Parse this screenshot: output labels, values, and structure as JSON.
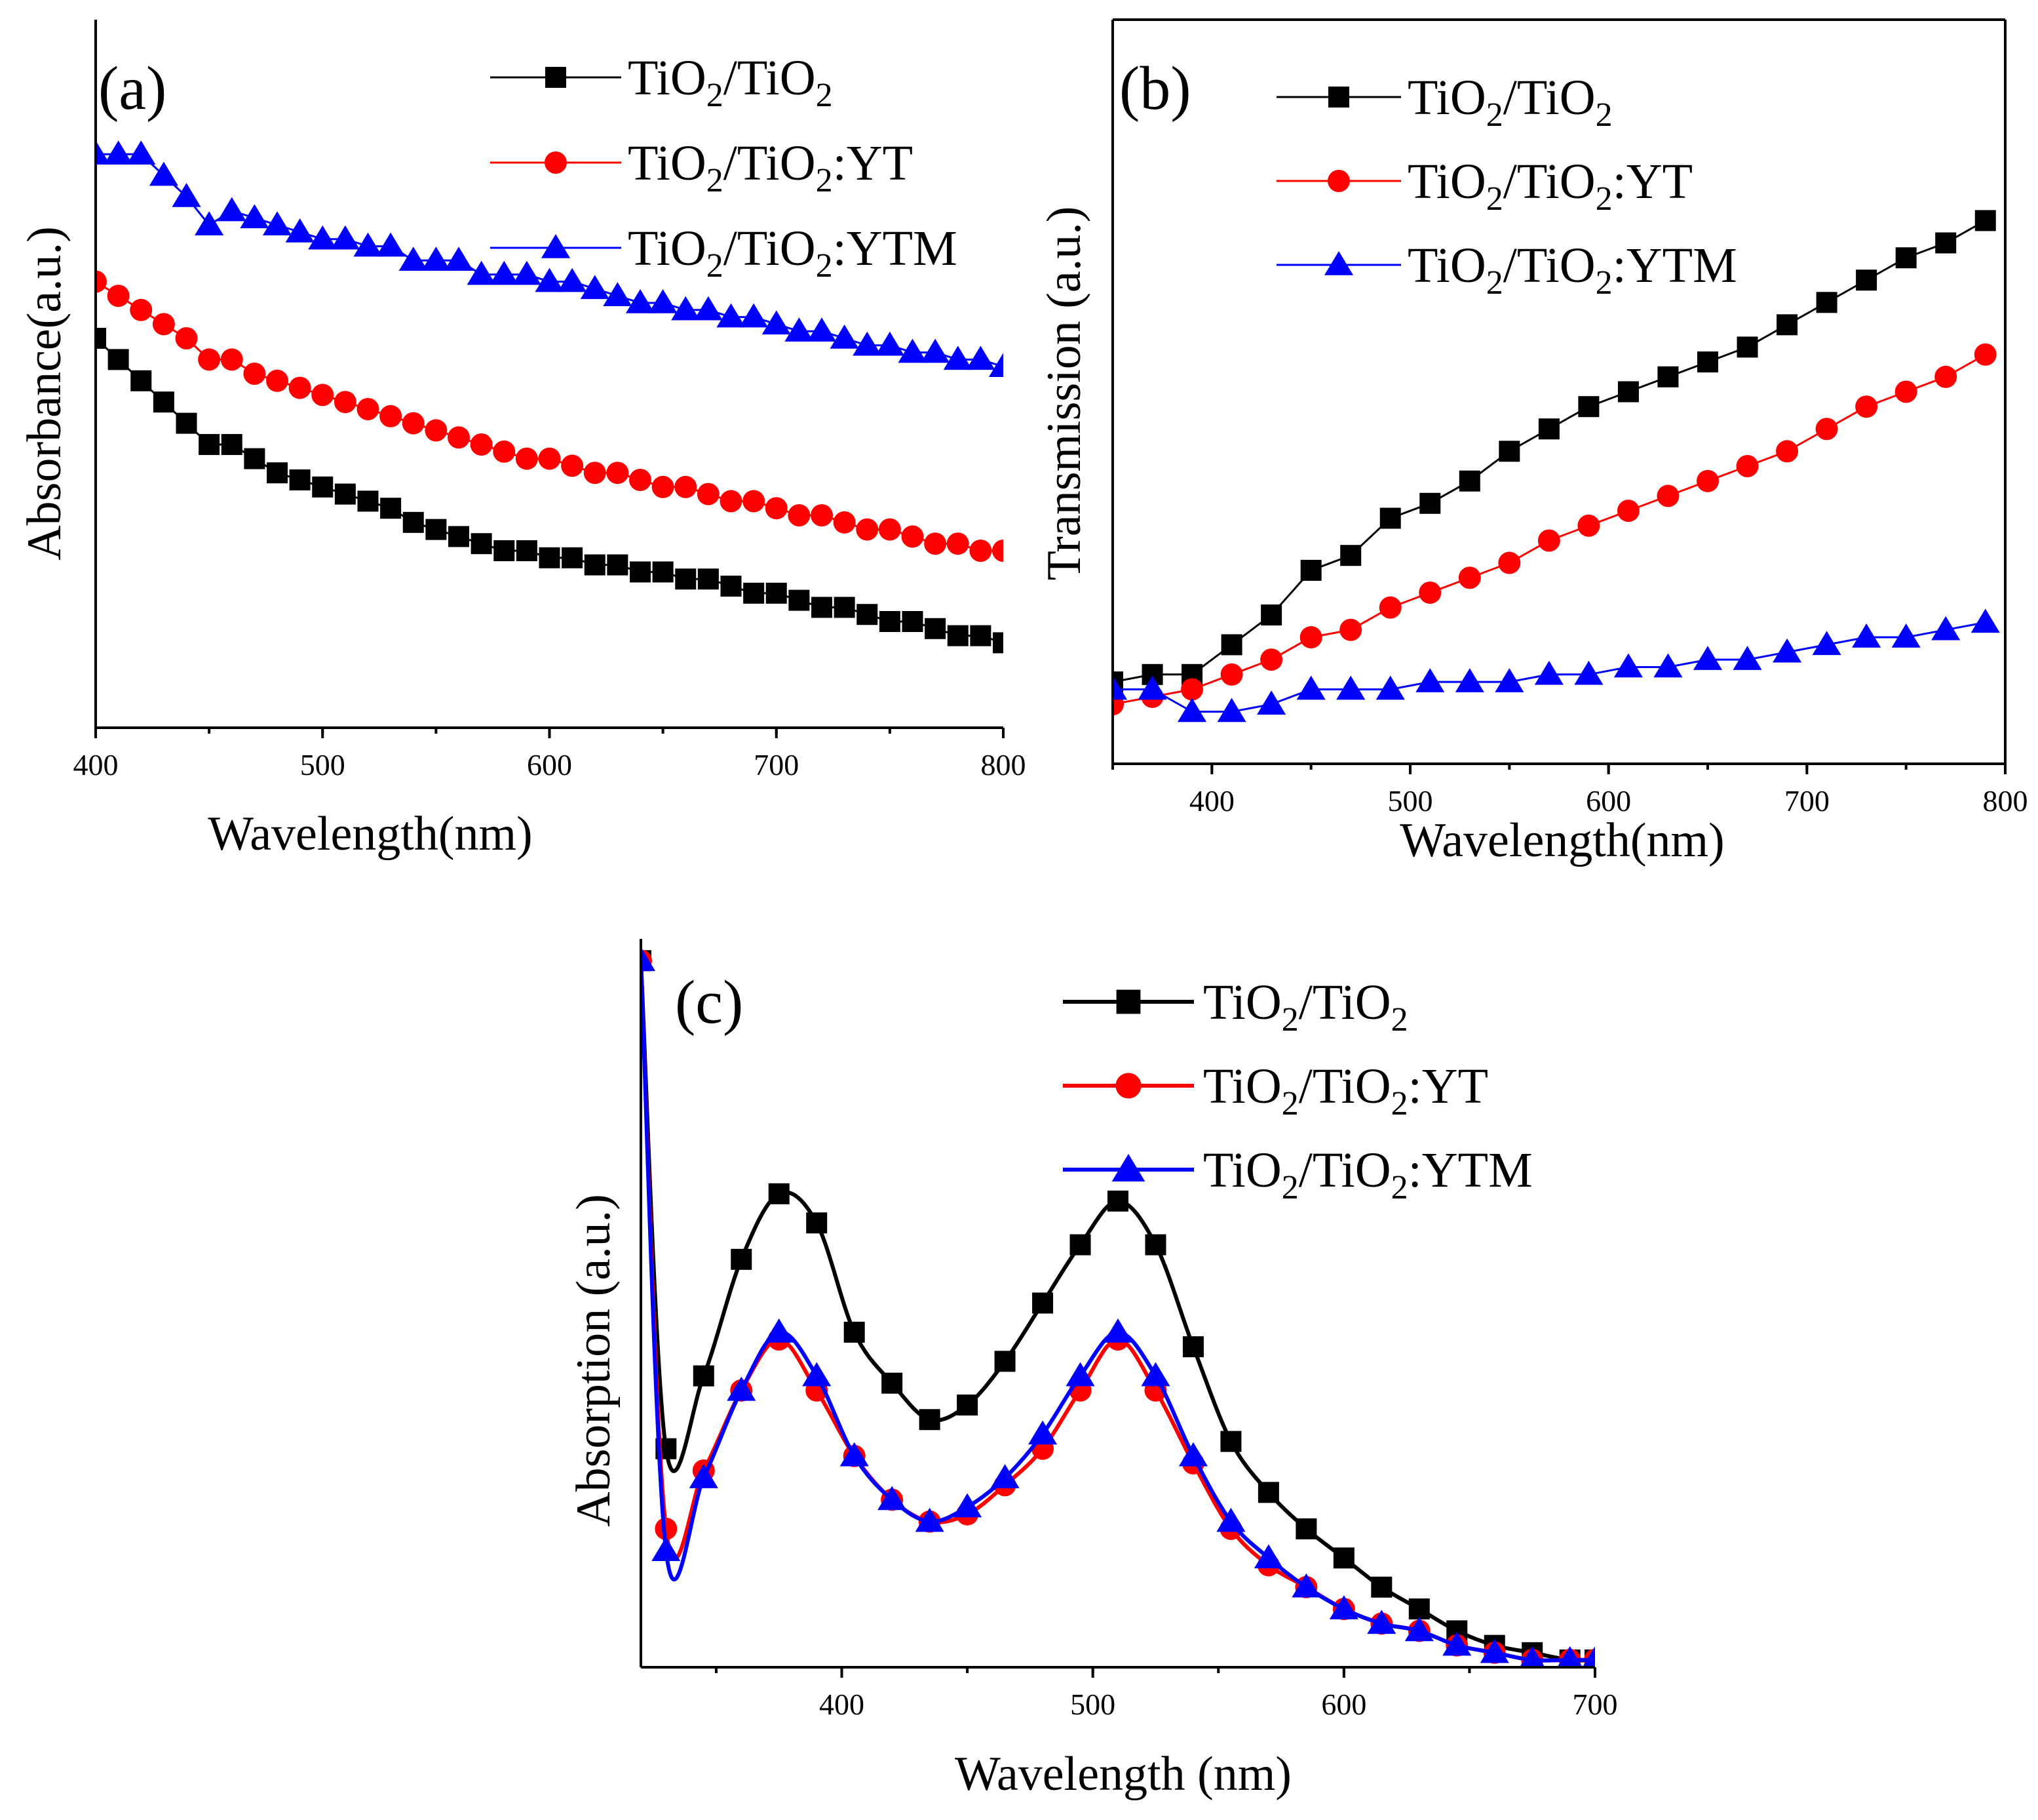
{
  "chart_data": [
    {
      "type": "line",
      "panel_label": "(a)",
      "xlabel": "Wavelength(nm)",
      "ylabel": "Absorbance(a.u.)",
      "xlim": [
        400,
        800
      ],
      "ylim": [
        0,
        1
      ],
      "xticks": [
        "400",
        "500",
        "600",
        "700",
        "800"
      ],
      "legend_position": "top-right",
      "series": [
        {
          "name": "TiO2/TiO2",
          "legend": {
            "base": "TiO",
            "sub1": "2",
            "mid": "/TiO",
            "sub2": "2",
            "tail": ""
          },
          "color": "#000000",
          "marker": "square",
          "x": [
            400,
            410,
            420,
            430,
            440,
            450,
            460,
            470,
            480,
            490,
            500,
            510,
            520,
            530,
            540,
            550,
            560,
            570,
            580,
            590,
            600,
            610,
            620,
            630,
            640,
            650,
            660,
            670,
            680,
            690,
            700,
            710,
            720,
            730,
            740,
            750,
            760,
            770,
            780,
            790,
            800
          ],
          "y": [
            0.55,
            0.52,
            0.49,
            0.46,
            0.43,
            0.4,
            0.4,
            0.38,
            0.36,
            0.35,
            0.34,
            0.33,
            0.32,
            0.31,
            0.29,
            0.28,
            0.27,
            0.26,
            0.25,
            0.25,
            0.24,
            0.24,
            0.23,
            0.23,
            0.22,
            0.22,
            0.21,
            0.21,
            0.2,
            0.19,
            0.19,
            0.18,
            0.17,
            0.17,
            0.16,
            0.15,
            0.15,
            0.14,
            0.13,
            0.13,
            0.12
          ]
        },
        {
          "name": "TiO2/TiO2:YT",
          "legend": {
            "base": "TiO",
            "sub1": "2",
            "mid": "/TiO",
            "sub2": "2",
            "tail": ":YT"
          },
          "color": "#ff0000",
          "marker": "circle",
          "x": [
            400,
            410,
            420,
            430,
            440,
            450,
            460,
            470,
            480,
            490,
            500,
            510,
            520,
            530,
            540,
            550,
            560,
            570,
            580,
            590,
            600,
            610,
            620,
            630,
            640,
            650,
            660,
            670,
            680,
            690,
            700,
            710,
            720,
            730,
            740,
            750,
            760,
            770,
            780,
            790,
            800
          ],
          "y": [
            0.63,
            0.61,
            0.59,
            0.57,
            0.55,
            0.52,
            0.52,
            0.5,
            0.49,
            0.48,
            0.47,
            0.46,
            0.45,
            0.44,
            0.43,
            0.42,
            0.41,
            0.4,
            0.39,
            0.38,
            0.38,
            0.37,
            0.36,
            0.36,
            0.35,
            0.34,
            0.34,
            0.33,
            0.32,
            0.32,
            0.31,
            0.3,
            0.3,
            0.29,
            0.28,
            0.28,
            0.27,
            0.26,
            0.26,
            0.25,
            0.25
          ]
        },
        {
          "name": "TiO2/TiO2:YTM",
          "legend": {
            "base": "TiO",
            "sub1": "2",
            "mid": "/TiO",
            "sub2": "2",
            "tail": ":YTM"
          },
          "color": "#0000ff",
          "marker": "triangle",
          "x": [
            400,
            410,
            420,
            430,
            440,
            450,
            460,
            470,
            480,
            490,
            500,
            510,
            520,
            530,
            540,
            550,
            560,
            570,
            580,
            590,
            600,
            610,
            620,
            630,
            640,
            650,
            660,
            670,
            680,
            690,
            700,
            710,
            720,
            730,
            740,
            750,
            760,
            770,
            780,
            790,
            800
          ],
          "y": [
            0.81,
            0.81,
            0.81,
            0.78,
            0.75,
            0.71,
            0.73,
            0.72,
            0.71,
            0.7,
            0.69,
            0.69,
            0.68,
            0.68,
            0.66,
            0.66,
            0.66,
            0.64,
            0.64,
            0.64,
            0.63,
            0.63,
            0.62,
            0.61,
            0.6,
            0.6,
            0.59,
            0.59,
            0.58,
            0.58,
            0.57,
            0.56,
            0.56,
            0.55,
            0.54,
            0.54,
            0.53,
            0.53,
            0.52,
            0.52,
            0.51
          ]
        }
      ]
    },
    {
      "type": "line",
      "panel_label": "(b)",
      "xlabel": "Wavelength(nm)",
      "ylabel": "Transmission (a.u.)",
      "xlim": [
        350,
        800
      ],
      "ylim": [
        0,
        1
      ],
      "xticks": [
        "400",
        "500",
        "600",
        "700",
        "800"
      ],
      "legend_position": "top-left",
      "series": [
        {
          "name": "TiO2/TiO2",
          "legend": {
            "base": "TiO",
            "sub1": "2",
            "mid": "/TiO",
            "sub2": "2",
            "tail": ""
          },
          "color": "#000000",
          "marker": "square",
          "x": [
            350,
            370,
            390,
            410,
            430,
            450,
            470,
            490,
            510,
            530,
            550,
            570,
            590,
            610,
            630,
            650,
            670,
            690,
            710,
            730,
            750,
            770,
            790
          ],
          "y": [
            0.11,
            0.12,
            0.12,
            0.16,
            0.2,
            0.26,
            0.28,
            0.33,
            0.35,
            0.38,
            0.42,
            0.45,
            0.48,
            0.5,
            0.52,
            0.54,
            0.56,
            0.59,
            0.62,
            0.65,
            0.68,
            0.7,
            0.73
          ]
        },
        {
          "name": "TiO2/TiO2:YT",
          "legend": {
            "base": "TiO",
            "sub1": "2",
            "mid": "/TiO",
            "sub2": "2",
            "tail": ":YT"
          },
          "color": "#ff0000",
          "marker": "circle",
          "x": [
            350,
            370,
            390,
            410,
            430,
            450,
            470,
            490,
            510,
            530,
            550,
            570,
            590,
            610,
            630,
            650,
            670,
            690,
            710,
            730,
            750,
            770,
            790
          ],
          "y": [
            0.08,
            0.09,
            0.1,
            0.12,
            0.14,
            0.17,
            0.18,
            0.21,
            0.23,
            0.25,
            0.27,
            0.3,
            0.32,
            0.34,
            0.36,
            0.38,
            0.4,
            0.42,
            0.45,
            0.48,
            0.5,
            0.52,
            0.55
          ]
        },
        {
          "name": "TiO2/TiO2:YTM",
          "legend": {
            "base": "TiO",
            "sub1": "2",
            "mid": "/TiO",
            "sub2": "2",
            "tail": ":YTM"
          },
          "color": "#0000ff",
          "marker": "triangle",
          "x": [
            350,
            370,
            390,
            410,
            430,
            450,
            470,
            490,
            510,
            530,
            550,
            570,
            590,
            610,
            630,
            650,
            670,
            690,
            710,
            730,
            750,
            770,
            790
          ],
          "y": [
            0.1,
            0.1,
            0.07,
            0.07,
            0.08,
            0.1,
            0.1,
            0.1,
            0.11,
            0.11,
            0.11,
            0.12,
            0.12,
            0.13,
            0.13,
            0.14,
            0.14,
            0.15,
            0.16,
            0.17,
            0.17,
            0.18,
            0.19
          ]
        }
      ]
    },
    {
      "type": "line",
      "panel_label": "(c)",
      "xlabel": "Wavelength (nm)",
      "ylabel": "Absorption (a.u.)",
      "xlim": [
        320,
        700
      ],
      "ylim": [
        0,
        1
      ],
      "xticks": [
        "400",
        "500",
        "600",
        "700"
      ],
      "legend_position": "top-right",
      "series": [
        {
          "name": "TiO2/TiO2",
          "legend": {
            "base": "TiO",
            "sub1": "2",
            "mid": "/TiO",
            "sub2": "2",
            "tail": ""
          },
          "color": "#000000",
          "marker": "square",
          "x": [
            320,
            330,
            345,
            360,
            375,
            390,
            405,
            420,
            435,
            450,
            465,
            480,
            495,
            510,
            525,
            540,
            555,
            570,
            585,
            600,
            615,
            630,
            645,
            660,
            675,
            690,
            700
          ],
          "y": [
            0.97,
            0.3,
            0.4,
            0.56,
            0.65,
            0.61,
            0.46,
            0.39,
            0.34,
            0.36,
            0.42,
            0.5,
            0.58,
            0.64,
            0.58,
            0.44,
            0.31,
            0.24,
            0.19,
            0.15,
            0.11,
            0.08,
            0.05,
            0.03,
            0.02,
            0.01,
            0.01
          ]
        },
        {
          "name": "TiO2/TiO2:YT",
          "legend": {
            "base": "TiO",
            "sub1": "2",
            "mid": "/TiO",
            "sub2": "2",
            "tail": ":YT"
          },
          "color": "#ff0000",
          "marker": "circle",
          "x": [
            320,
            330,
            345,
            360,
            375,
            390,
            405,
            420,
            435,
            450,
            465,
            480,
            495,
            510,
            525,
            540,
            555,
            570,
            585,
            600,
            615,
            630,
            645,
            660,
            675,
            690,
            700
          ],
          "y": [
            0.97,
            0.19,
            0.27,
            0.38,
            0.45,
            0.38,
            0.29,
            0.23,
            0.2,
            0.21,
            0.25,
            0.3,
            0.38,
            0.45,
            0.38,
            0.28,
            0.19,
            0.14,
            0.11,
            0.08,
            0.06,
            0.05,
            0.03,
            0.02,
            0.01,
            0.01,
            0.01
          ]
        },
        {
          "name": "TiO2/TiO2:YTM",
          "legend": {
            "base": "TiO",
            "sub1": "2",
            "mid": "/TiO",
            "sub2": "2",
            "tail": ":YTM"
          },
          "color": "#0000ff",
          "marker": "triangle",
          "x": [
            320,
            330,
            345,
            360,
            375,
            390,
            405,
            420,
            435,
            450,
            465,
            480,
            495,
            510,
            525,
            540,
            555,
            570,
            585,
            600,
            615,
            630,
            645,
            660,
            675,
            690,
            700
          ],
          "y": [
            0.97,
            0.16,
            0.26,
            0.38,
            0.46,
            0.4,
            0.29,
            0.23,
            0.2,
            0.22,
            0.26,
            0.32,
            0.4,
            0.46,
            0.4,
            0.29,
            0.2,
            0.15,
            0.11,
            0.08,
            0.06,
            0.05,
            0.03,
            0.02,
            0.01,
            0.01,
            0.01
          ]
        }
      ]
    }
  ]
}
